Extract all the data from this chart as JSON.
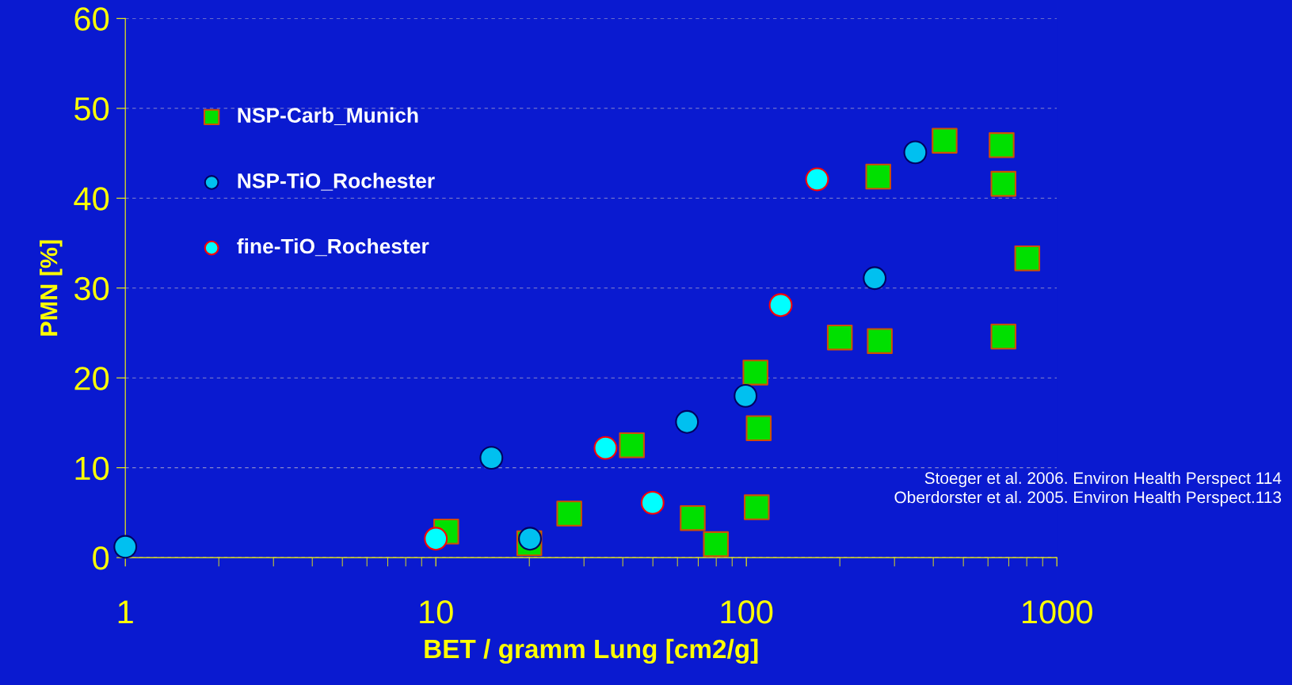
{
  "chart_data": {
    "type": "scatter",
    "xlabel": "BET / gramm Lung [cm2/g]",
    "ylabel": "PMN [%]",
    "log": "x",
    "xlim": [
      1,
      1000
    ],
    "xticks": [
      1,
      10,
      100,
      1000
    ],
    "ylim": [
      0,
      60
    ],
    "yticks": [
      0,
      10,
      20,
      30,
      40,
      50,
      60
    ],
    "grid": "y",
    "legend": "top left",
    "series": [
      {
        "name": "NSP-Carb_Munich",
        "color": "#00e000",
        "marker": "square",
        "x": [
          10.8,
          20,
          26.9,
          42.8,
          67.2,
          79.8,
          107,
          109.6,
          108,
          200,
          269,
          266,
          435,
          664,
          673,
          673,
          803
        ],
        "values": [
          2.9,
          1.6,
          4.9,
          12.5,
          4.4,
          1.5,
          20.6,
          14.4,
          5.6,
          24.5,
          24.1,
          42.4,
          46.4,
          45.9,
          41.6,
          24.6,
          33.3
        ]
      },
      {
        "name": "NSP-TiO_Rochester",
        "color": "#00c0f0",
        "marker": "circle",
        "x": [
          1,
          15.1,
          20.1,
          64.4,
          99.4,
          259,
          350
        ],
        "values": [
          1.2,
          11.1,
          2.1,
          15.1,
          18.0,
          31.1,
          45.1
        ]
      },
      {
        "name": "fine-TiO_Rochester",
        "color": "#00ffff",
        "marker": "circle",
        "x": [
          10,
          35.2,
          49.9,
          129,
          169
        ],
        "values": [
          2.1,
          12.2,
          6.1,
          28.1,
          42.1
        ]
      }
    ],
    "annotations": [
      "Stoeger et al. 2006. Environ Health Perspect 114",
      "Oberdorster et al. 2005. Environ Health Perspect.113"
    ]
  }
}
